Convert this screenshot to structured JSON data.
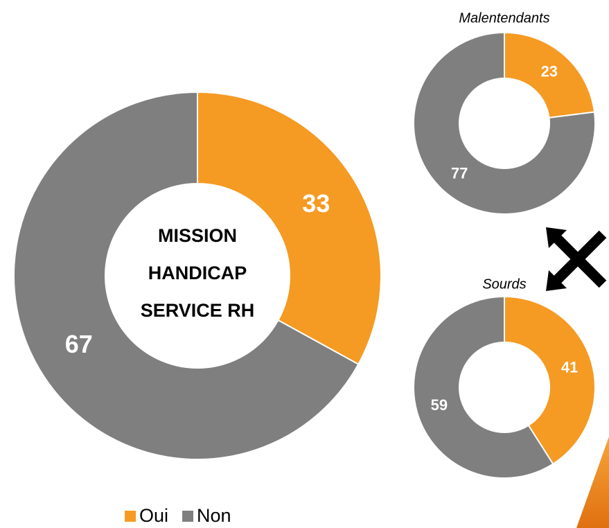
{
  "chart_data": [
    {
      "type": "donut",
      "categories": [
        "Oui",
        "Non"
      ],
      "values": [
        33,
        67
      ],
      "colors": [
        "#f59a23",
        "#7f7f7f"
      ],
      "center_text": [
        "MISSION",
        "HANDICAP",
        "SERVICE RH"
      ],
      "legend": "bottom"
    },
    {
      "type": "donut",
      "title": "Malentendants",
      "values": [
        23,
        77
      ],
      "colors": [
        "#f59a23",
        "#7f7f7f"
      ]
    },
    {
      "type": "donut",
      "title": "Sourds",
      "values": [
        41,
        59
      ],
      "colors": [
        "#f59a23",
        "#7f7f7f"
      ]
    }
  ]
}
